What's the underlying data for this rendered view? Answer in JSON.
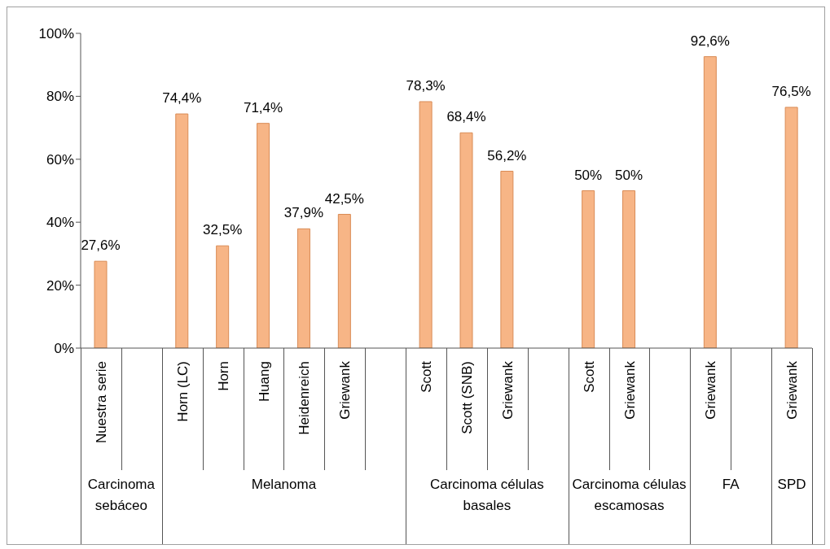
{
  "chart_data": {
    "type": "bar",
    "categories": [
      "Nuestra serie",
      null,
      "Horn (LC)",
      "Horn",
      "Huang",
      "Heidenreich",
      "Griewank",
      null,
      "Scott",
      "Scott (SNB)",
      "Griewank",
      null,
      "Scott",
      "Griewank",
      null,
      "Griewank",
      null,
      "Griewank"
    ],
    "values": [
      27.6,
      null,
      74.4,
      32.5,
      71.4,
      37.9,
      42.5,
      null,
      78.3,
      68.4,
      56.2,
      null,
      50,
      50,
      null,
      92.6,
      null,
      76.5
    ],
    "value_labels": [
      "27,6%",
      null,
      "74,4%",
      "32,5%",
      "71,4%",
      "37,9%",
      "42,5%",
      null,
      "78,3%",
      "68,4%",
      "56,2%",
      null,
      "50%",
      "50%",
      null,
      "92,6%",
      null,
      "76,5%"
    ],
    "color": "#f7b586",
    "ylim": [
      0,
      100
    ],
    "yticks": [
      {
        "value": 0,
        "label": "0%"
      },
      {
        "value": 20,
        "label": "20%"
      },
      {
        "value": 40,
        "label": "40%"
      },
      {
        "value": 60,
        "label": "60%"
      },
      {
        "value": 80,
        "label": "80%"
      },
      {
        "value": 100,
        "label": "100%"
      }
    ],
    "annotations": [
      "Carcinoma sebáceo",
      "Melanoma",
      "Carcinoma células basales",
      "Carcinoma células escamosas",
      "FA",
      "SPD"
    ]
  }
}
